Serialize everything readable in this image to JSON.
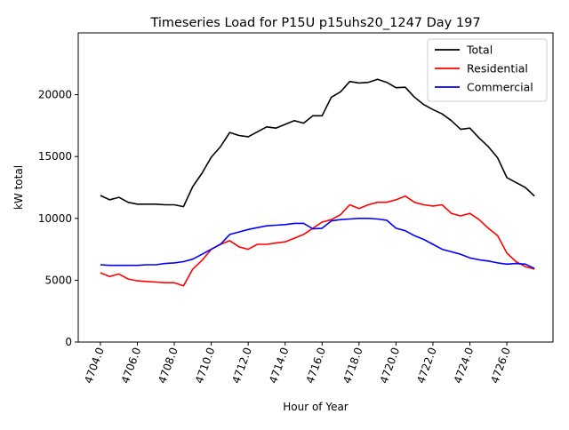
{
  "chart_data": {
    "type": "line",
    "title": "Timeseries Load for P15U p15uhs20_1247  Day 197",
    "xlabel": "Hour of Year",
    "ylabel": "kW total",
    "xlim": [
      4702.8,
      4728.5
    ],
    "ylim": [
      0,
      25000
    ],
    "xticks": [
      "4704.0",
      "4706.0",
      "4708.0",
      "4710.0",
      "4712.0",
      "4714.0",
      "4716.0",
      "4718.0",
      "4720.0",
      "4722.0",
      "4724.0",
      "4726.0"
    ],
    "xtick_values": [
      4704,
      4706,
      4708,
      4710,
      4712,
      4714,
      4716,
      4718,
      4720,
      4722,
      4724,
      4726
    ],
    "yticks": [
      "0",
      "5000",
      "10000",
      "15000",
      "20000"
    ],
    "ytick_values": [
      0,
      5000,
      10000,
      15000,
      20000
    ],
    "legend_position": "top-right",
    "x": [
      4704,
      4704.5,
      4705,
      4705.5,
      4706,
      4706.5,
      4707,
      4707.5,
      4708,
      4708.5,
      4709,
      4709.5,
      4710,
      4710.5,
      4711,
      4711.5,
      4712,
      4712.5,
      4713,
      4713.5,
      4714,
      4714.5,
      4715,
      4715.5,
      4716,
      4716.5,
      4717,
      4717.5,
      4718,
      4718.5,
      4719,
      4719.5,
      4720,
      4720.5,
      4721,
      4721.5,
      4722,
      4722.5,
      4723,
      4723.5,
      4724,
      4724.5,
      4725,
      4725.5,
      4726,
      4726.5,
      4727,
      4727.5
    ],
    "series": [
      {
        "name": "Total",
        "color": "#000000",
        "values": [
          11850,
          11500,
          11700,
          11300,
          11150,
          11150,
          11150,
          11100,
          11100,
          10950,
          12570,
          13650,
          14940,
          15800,
          16950,
          16700,
          16600,
          17000,
          17400,
          17300,
          17600,
          17900,
          17700,
          18300,
          18300,
          19800,
          20240,
          21070,
          20950,
          21000,
          21250,
          21000,
          20570,
          20600,
          19800,
          19200,
          18800,
          18450,
          17900,
          17200,
          17300,
          16500,
          15800,
          14900,
          13300,
          12900,
          12500,
          11800
        ]
      },
      {
        "name": "Residential",
        "color": "#ff0000",
        "values": [
          5600,
          5300,
          5500,
          5100,
          4950,
          4900,
          4850,
          4800,
          4800,
          4550,
          5900,
          6600,
          7500,
          7900,
          8200,
          7700,
          7500,
          7900,
          7900,
          8000,
          8100,
          8400,
          8700,
          9200,
          9700,
          9900,
          10300,
          11100,
          10800,
          11100,
          11300,
          11300,
          11500,
          11800,
          11300,
          11100,
          11000,
          11100,
          10400,
          10200,
          10400,
          9900,
          9200,
          8600,
          7200,
          6500,
          6100,
          5900
        ]
      },
      {
        "name": "Commercial",
        "color": "#0000ff",
        "values": [
          6250,
          6200,
          6200,
          6200,
          6200,
          6250,
          6250,
          6350,
          6400,
          6500,
          6700,
          7100,
          7500,
          7900,
          8700,
          8900,
          9100,
          9250,
          9400,
          9450,
          9500,
          9600,
          9600,
          9150,
          9200,
          9800,
          9900,
          9950,
          10000,
          10000,
          9950,
          9850,
          9200,
          9000,
          8600,
          8300,
          7900,
          7500,
          7300,
          7100,
          6800,
          6650,
          6550,
          6400,
          6300,
          6350,
          6300,
          5950
        ]
      }
    ]
  }
}
